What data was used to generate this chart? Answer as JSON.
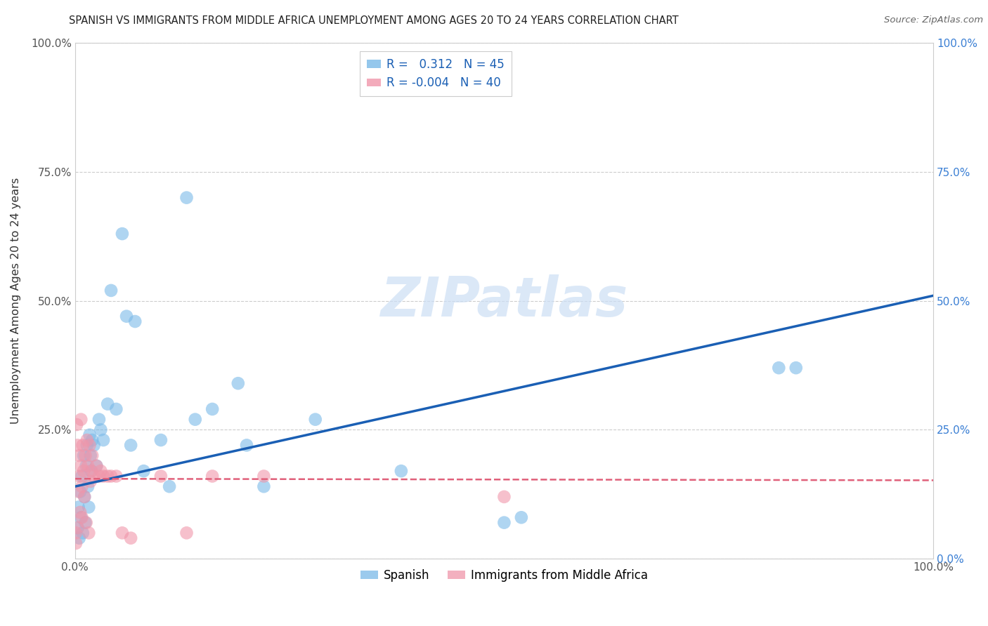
{
  "title": "SPANISH VS IMMIGRANTS FROM MIDDLE AFRICA UNEMPLOYMENT AMONG AGES 20 TO 24 YEARS CORRELATION CHART",
  "source": "Source: ZipAtlas.com",
  "ylabel": "Unemployment Among Ages 20 to 24 years",
  "xlim": [
    0,
    1.0
  ],
  "ylim": [
    0,
    1.0
  ],
  "xtick_vals": [
    0.0,
    0.25,
    0.5,
    0.75,
    1.0
  ],
  "ytick_vals": [
    0.0,
    0.25,
    0.5,
    0.75,
    1.0
  ],
  "xticklabels": [
    "0.0%",
    "",
    "",
    "",
    "100.0%"
  ],
  "left_yticklabels": [
    "",
    "25.0%",
    "50.0%",
    "75.0%",
    "100.0%"
  ],
  "right_yticklabels": [
    "0.0%",
    "25.0%",
    "50.0%",
    "75.0%",
    "100.0%"
  ],
  "legend_bottom": [
    "Spanish",
    "Immigrants from Middle Africa"
  ],
  "spanish_color": "#7ab9e8",
  "immigrant_color": "#f096aa",
  "spanish_R": 0.312,
  "spanish_N": 45,
  "immigrant_R": -0.004,
  "immigrant_N": 40,
  "watermark": "ZIPatlas",
  "spanish_line_x": [
    0.0,
    1.0
  ],
  "spanish_line_y": [
    0.14,
    0.51
  ],
  "immigrant_line_x": [
    0.0,
    1.0
  ],
  "immigrant_line_y": [
    0.155,
    0.152
  ],
  "spanish_x": [
    0.003,
    0.004,
    0.005,
    0.006,
    0.007,
    0.008,
    0.009,
    0.01,
    0.011,
    0.012,
    0.013,
    0.014,
    0.015,
    0.016,
    0.017,
    0.018,
    0.019,
    0.02,
    0.022,
    0.025,
    0.028,
    0.03,
    0.033,
    0.038,
    0.042,
    0.048,
    0.055,
    0.06,
    0.065,
    0.07,
    0.08,
    0.1,
    0.11,
    0.13,
    0.14,
    0.16,
    0.19,
    0.2,
    0.22,
    0.28,
    0.38,
    0.5,
    0.52,
    0.82,
    0.84
  ],
  "spanish_y": [
    0.06,
    0.1,
    0.04,
    0.13,
    0.08,
    0.16,
    0.05,
    0.2,
    0.12,
    0.07,
    0.18,
    0.22,
    0.14,
    0.1,
    0.24,
    0.2,
    0.17,
    0.23,
    0.22,
    0.18,
    0.27,
    0.25,
    0.23,
    0.3,
    0.52,
    0.29,
    0.63,
    0.47,
    0.22,
    0.46,
    0.17,
    0.23,
    0.14,
    0.7,
    0.27,
    0.29,
    0.34,
    0.22,
    0.14,
    0.27,
    0.17,
    0.07,
    0.08,
    0.37,
    0.37
  ],
  "immigrant_x": [
    0.001,
    0.002,
    0.003,
    0.004,
    0.005,
    0.005,
    0.006,
    0.007,
    0.007,
    0.008,
    0.008,
    0.009,
    0.01,
    0.011,
    0.012,
    0.013,
    0.014,
    0.015,
    0.016,
    0.017,
    0.018,
    0.019,
    0.02,
    0.022,
    0.025,
    0.028,
    0.03,
    0.033,
    0.038,
    0.042,
    0.048,
    0.055,
    0.065,
    0.1,
    0.13,
    0.16,
    0.22,
    0.5,
    0.001,
    0.003
  ],
  "immigrant_y": [
    0.05,
    0.26,
    0.22,
    0.13,
    0.2,
    0.16,
    0.09,
    0.18,
    0.27,
    0.14,
    0.08,
    0.22,
    0.17,
    0.12,
    0.2,
    0.07,
    0.23,
    0.18,
    0.05,
    0.22,
    0.15,
    0.17,
    0.2,
    0.16,
    0.18,
    0.16,
    0.17,
    0.16,
    0.16,
    0.16,
    0.16,
    0.05,
    0.04,
    0.16,
    0.05,
    0.16,
    0.16,
    0.12,
    0.03,
    0.06
  ]
}
